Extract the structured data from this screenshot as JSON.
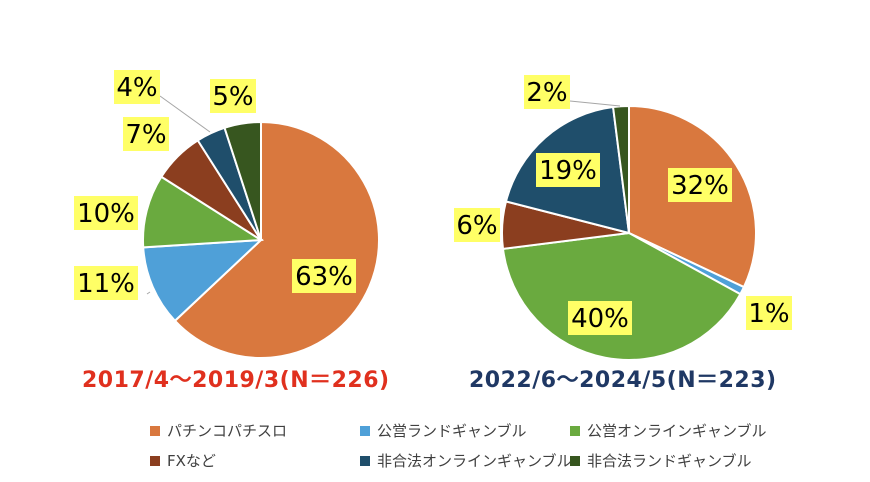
{
  "chart_data": [
    {
      "type": "pie",
      "title": "2017/4～2019/3(N＝226)",
      "title_color": "#e0301e",
      "slices": [
        {
          "label": "パチンコパチスロ",
          "value": 63,
          "text": "63%",
          "color": "#d9783e"
        },
        {
          "label": "公営ランドギャンブル",
          "value": 11,
          "text": "11%",
          "color": "#4fa0d8"
        },
        {
          "label": "公営オンラインギャンブル",
          "value": 10,
          "text": "10%",
          "color": "#6aaa3f"
        },
        {
          "label": "FXなど",
          "value": 7,
          "text": "7%",
          "color": "#8b3e1f"
        },
        {
          "label": "非合法オンラインギャンブル",
          "value": 4,
          "text": "4%",
          "color": "#1f4e6b"
        },
        {
          "label": "非合法ランドギャンブル",
          "value": 5,
          "text": "5%",
          "color": "#37561f"
        }
      ]
    },
    {
      "type": "pie",
      "title": "2022/6～2024/5(N＝223)",
      "title_color": "#1f3864",
      "slices": [
        {
          "label": "パチンコパチスロ",
          "value": 32,
          "text": "32%",
          "color": "#d9783e"
        },
        {
          "label": "公営ランドギャンブル",
          "value": 1,
          "text": "1%",
          "color": "#4fa0d8"
        },
        {
          "label": "公営オンラインギャンブル",
          "value": 40,
          "text": "40%",
          "color": "#6aaa3f"
        },
        {
          "label": "FXなど",
          "value": 6,
          "text": "6%",
          "color": "#8b3e1f"
        },
        {
          "label": "非合法オンラインギャンブル",
          "value": 19,
          "text": "19%",
          "color": "#1f4e6b"
        },
        {
          "label": "非合法ランドギャンブル",
          "value": 2,
          "text": "2%",
          "color": "#37561f"
        }
      ]
    }
  ],
  "legend": [
    {
      "label": "パチンコパチスロ",
      "color": "#d9783e"
    },
    {
      "label": "公営ランドギャンブル",
      "color": "#4fa0d8"
    },
    {
      "label": "公営オンラインギャンブル",
      "color": "#6aaa3f"
    },
    {
      "label": "FXなど",
      "color": "#8b3e1f"
    },
    {
      "label": "非合法オンラインギャンブル",
      "color": "#1f4e6b"
    },
    {
      "label": "非合法ランドギャンブル",
      "color": "#37561f"
    }
  ],
  "label_style": {
    "highlight": "#ffff66",
    "text": "#000000"
  }
}
